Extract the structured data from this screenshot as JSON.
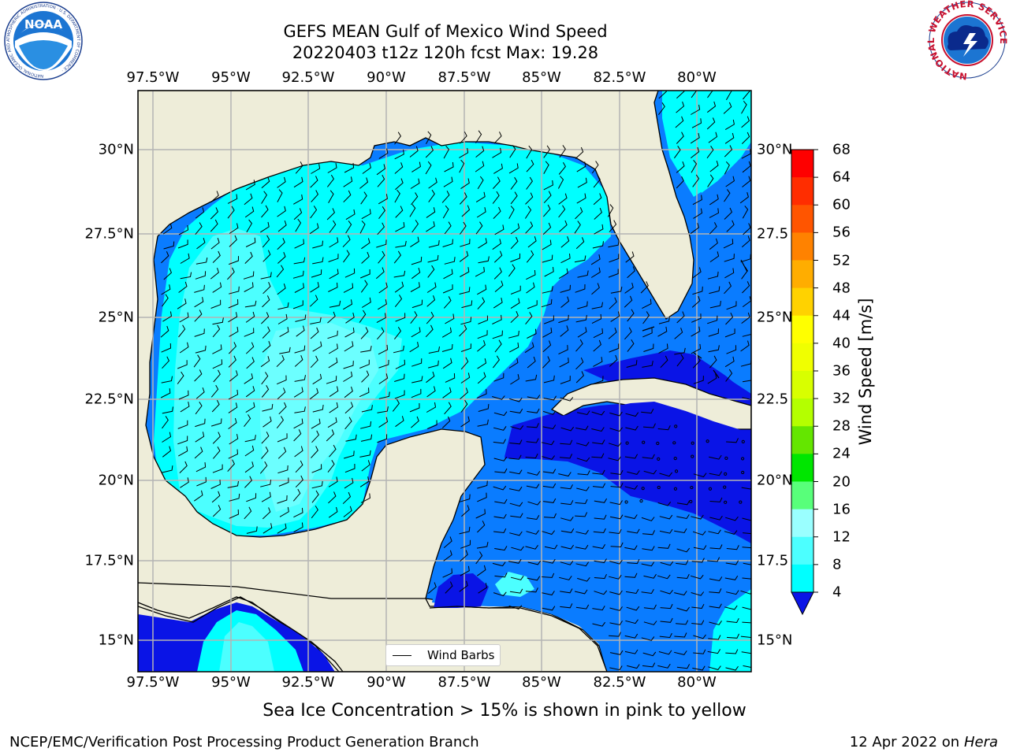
{
  "title_line1": "GEFS MEAN Gulf of Mexico Wind Speed",
  "title_line2": "20220403 t12z 120h fcst   Max: 19.28",
  "lon_labels": [
    "97.5°W",
    "95°W",
    "92.5°W",
    "90°W",
    "87.5°W",
    "85°W",
    "82.5°W",
    "80°W"
  ],
  "lat_labels_left": [
    "30°N",
    "27.5°N",
    "25°N",
    "22.5°N",
    "20°N",
    "17.5°N",
    "15°N"
  ],
  "lat_labels_right": [
    "30°N",
    "27.5",
    "25°N",
    "22.5",
    "20°N",
    "17.5",
    "15°N"
  ],
  "colorbar": {
    "title": "Wind Speed [m/s]",
    "ticks": [
      "68",
      "64",
      "60",
      "56",
      "52",
      "48",
      "44",
      "40",
      "36",
      "32",
      "28",
      "24",
      "20",
      "16",
      "12",
      "8",
      "4"
    ],
    "colors": [
      "#fe0000",
      "#ff2d00",
      "#ff5500",
      "#ff8200",
      "#ffad00",
      "#ffd200",
      "#ffff00",
      "#f0ff00",
      "#d8ff00",
      "#b4ff00",
      "#64e600",
      "#00e600",
      "#58ff7a",
      "#9affff",
      "#4cffff",
      "#00ffff",
      "#0a7cff"
    ],
    "under_color": "#0a14e6"
  },
  "legend_label": "Wind Barbs",
  "caption": "Sea Ice Concentration > 15% is shown in pink to yellow",
  "footer_left": "NCEP/EMC/Verification Post Processing Product Generation Branch",
  "footer_date": "12 Apr 2022 on ",
  "footer_machine": "Hera",
  "logos": {
    "noaa_text": "NOAA",
    "noaa_ring": "NATIONAL OCEANIC AND ATMOSPHERIC ADMINISTRATION · U.S. DEPARTMENT OF COMMERCE ·",
    "nws_ring": "NATIONAL WEATHER SERVICE"
  },
  "map_colors": {
    "land": "#eeedd9",
    "grid": "#b4b4b4",
    "ws_4_8": "#0a7cff",
    "ws_8_12": "#00ffff",
    "ws_12_16": "#4cffff",
    "ws_under_4": "#0a14e6"
  }
}
